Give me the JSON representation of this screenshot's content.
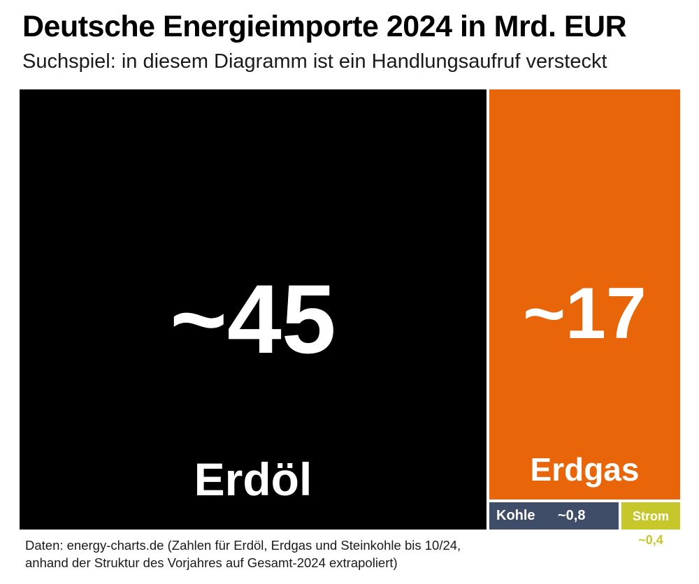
{
  "chart_data": {
    "type": "treemap",
    "title": "Deutsche Energieimporte 2024 in Mrd. EUR",
    "subtitle": "Suchspiel: in diesem Diagramm ist ein Handlungsaufruf versteckt",
    "items": [
      {
        "name": "Erdöl",
        "value": 45,
        "value_label": "~45",
        "color": "#000000"
      },
      {
        "name": "Erdgas",
        "value": 17,
        "value_label": "~17",
        "color": "#e8650a"
      },
      {
        "name": "Kohle",
        "value": 0.8,
        "value_label": "~0,8",
        "color": "#3f4d68"
      },
      {
        "name": "Strom",
        "value": 0.4,
        "value_label": "~0,4",
        "color": "#c5c72a"
      }
    ],
    "source": "Daten: energy-charts.de (Zahlen für Erdöl, Erdgas und Steinkohle bis 10/24, anhand der Struktur des Vorjahres auf Gesamt-2024 extrapoliert)"
  }
}
